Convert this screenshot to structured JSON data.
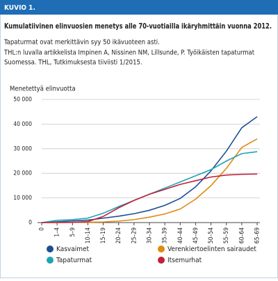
{
  "chart_data": {
    "type": "line",
    "figure_label": "KUVIO 1.",
    "title": "Kumulatiivinen elinvuosien menetys alle 70-vuotiailla ikäryhmittäin vuonna 2012.",
    "notes": [
      "Tapaturmat ovat merkittävin syy 50 ikävuoteen asti.",
      "THL:n luvalla artikkelista Impinen A, Nissinen NM, Lillsunde, P. Työikäisten tapaturmat",
      "Suomessa. THL, Tutkimuksesta tiiviisti 1/2015."
    ],
    "y_label": "Menetettyä elinvuotta",
    "categories": [
      "0",
      "1–4",
      "5–9",
      "10–14",
      "15–19",
      "20–24",
      "25–29",
      "30–34",
      "35–39",
      "40–44",
      "45–49",
      "50–54",
      "55–59",
      "60–64",
      "65–69"
    ],
    "series": [
      {
        "name": "Kasvaimet",
        "color": "#1b4f93",
        "values": [
          0,
          300,
          700,
          1000,
          1800,
          2600,
          3600,
          5000,
          7000,
          9800,
          14500,
          21000,
          29000,
          38500,
          43000
        ]
      },
      {
        "name": "Verenkiertoelinten sairaudet",
        "color": "#e08a12",
        "values": [
          0,
          50,
          100,
          150,
          250,
          600,
          1200,
          2200,
          3500,
          5500,
          9500,
          15000,
          22000,
          30500,
          34000
        ]
      },
      {
        "name": "Tapaturmat",
        "color": "#1ea2b6",
        "values": [
          0,
          900,
          1200,
          1800,
          3800,
          6500,
          9000,
          11500,
          14000,
          16500,
          19000,
          21500,
          25000,
          28000,
          28800
        ]
      },
      {
        "name": "Itsemurhat",
        "color": "#c21f3a",
        "values": [
          0,
          0,
          100,
          400,
          2500,
          6000,
          9000,
          11500,
          13500,
          15500,
          17000,
          18500,
          19300,
          19600,
          19700
        ]
      }
    ],
    "ylim": [
      0,
      50000
    ],
    "yticks": [
      0,
      {
        "value": 10000,
        "label": "10 000"
      },
      {
        "value": 20000,
        "label": "20 000"
      },
      {
        "value": 30000,
        "label": "30 000"
      },
      {
        "value": 40000,
        "label": "40 000"
      },
      {
        "value": 50000,
        "label": "50 000"
      }
    ],
    "grid": true
  }
}
